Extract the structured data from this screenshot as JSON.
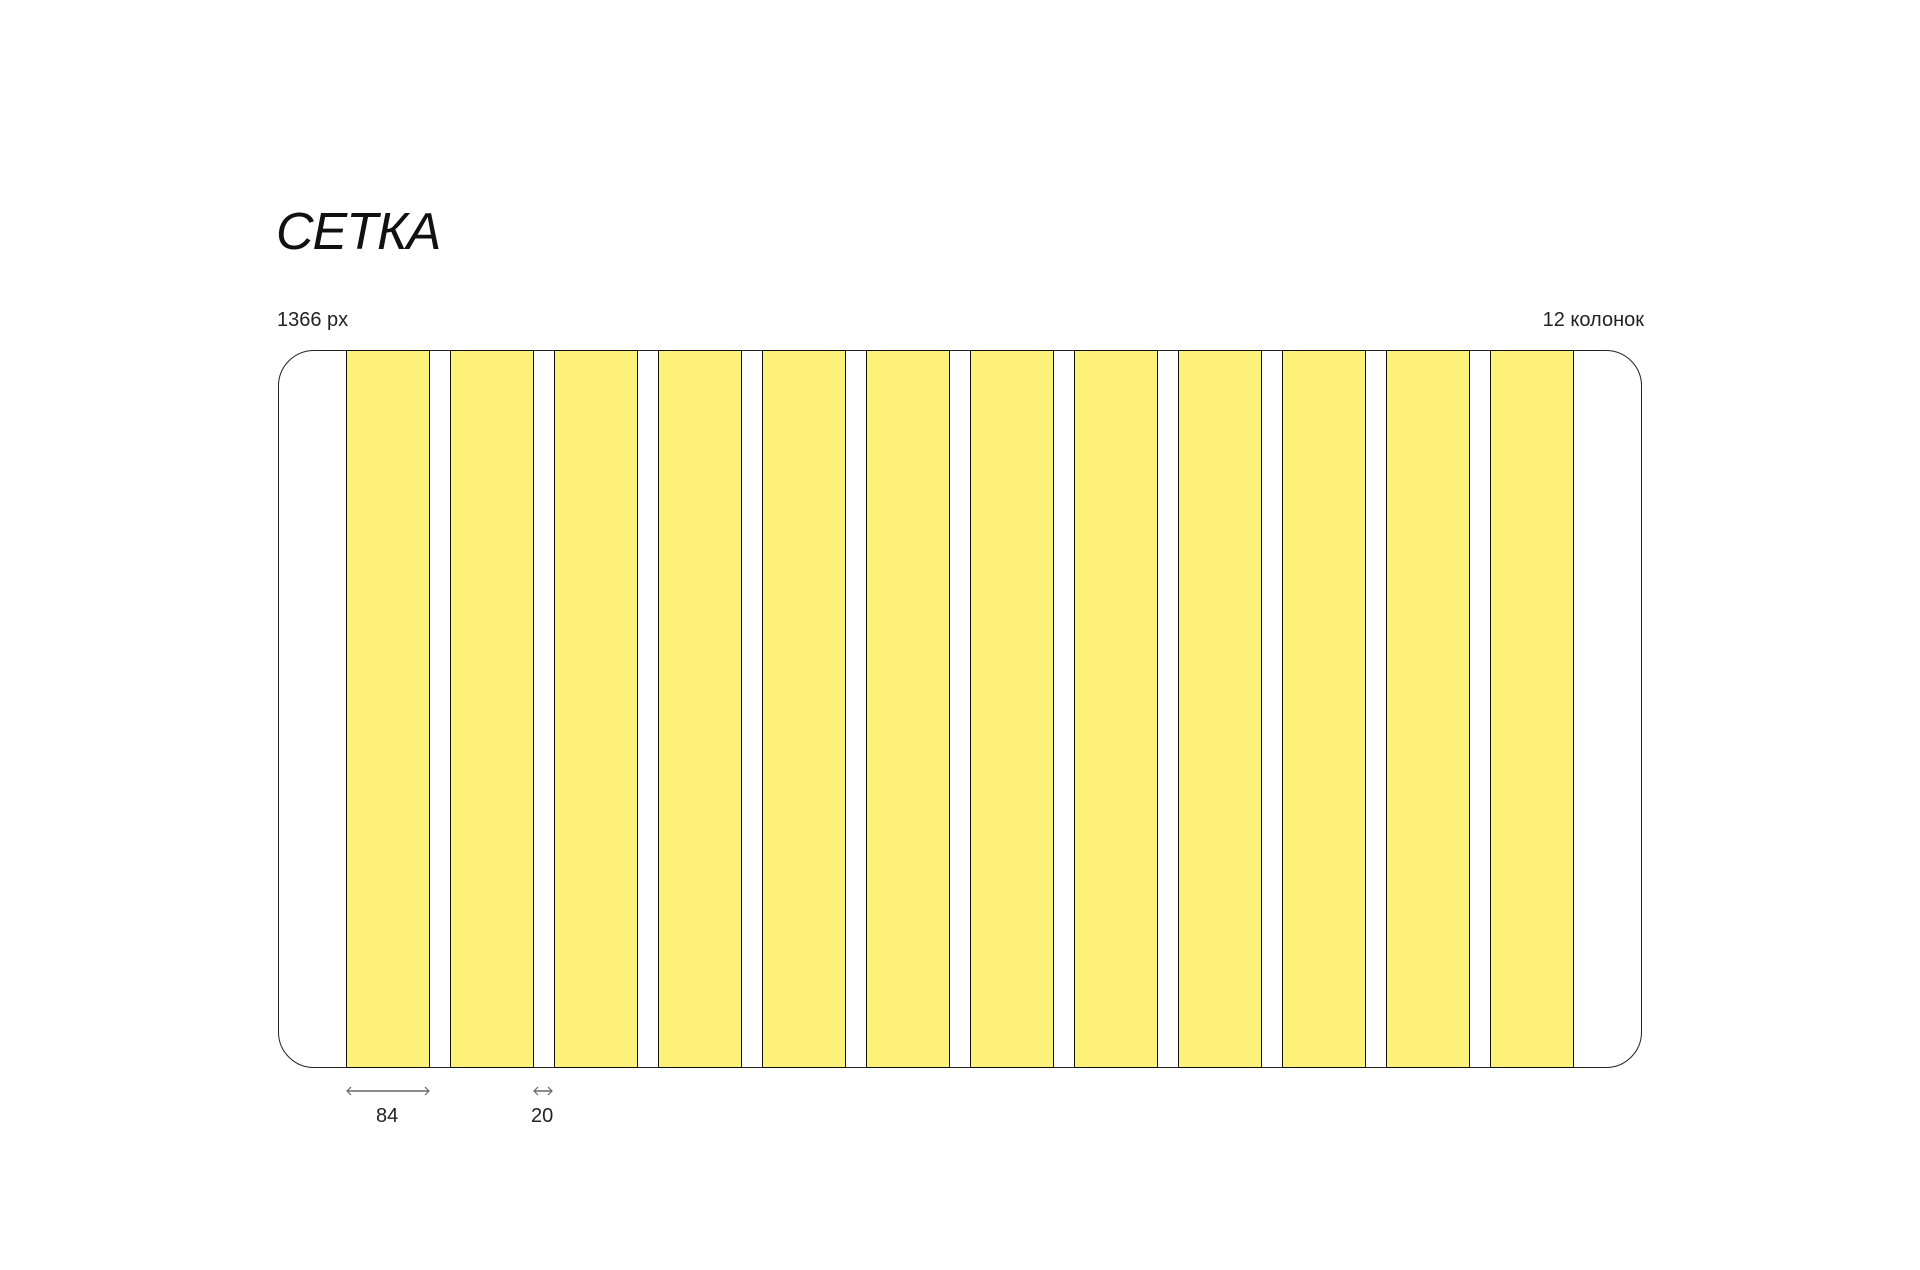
{
  "title": "СЕТКА",
  "width_label": "1366 px",
  "columns_label": "12 колонок",
  "grid": {
    "columns": 12,
    "column_width": 84,
    "gutter": 20,
    "column_color": "#FEF17A"
  },
  "dimensions": {
    "column": "84",
    "gutter": "20"
  }
}
